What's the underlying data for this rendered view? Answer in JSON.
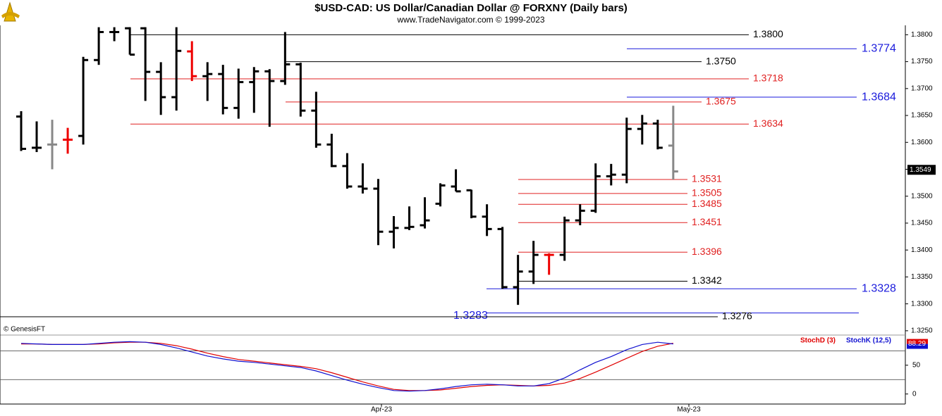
{
  "chart_data": {
    "type": "ohlc",
    "title": "$USD-CAD:  US Dollar/Canadian Dollar @ FORXNY  (Daily bars)",
    "subtitle": "www.TradeNavigator.com © 1999-2023",
    "source": "© GenesisFT",
    "ylim": [
      1.3242,
      1.3841
    ],
    "yticks": [
      {
        "value": 1.325,
        "label": "1.3250"
      },
      {
        "value": 1.33,
        "label": "1.3300"
      },
      {
        "value": 1.335,
        "label": "1.3350"
      },
      {
        "value": 1.34,
        "label": "1.3400"
      },
      {
        "value": 1.345,
        "label": "1.3450"
      },
      {
        "value": 1.35,
        "label": "1.3500"
      },
      {
        "value": 1.355,
        "label": "1.3550"
      },
      {
        "value": 1.36,
        "label": "1.3600"
      },
      {
        "value": 1.365,
        "label": "1.3650"
      },
      {
        "value": 1.37,
        "label": "1.3700"
      },
      {
        "value": 1.375,
        "label": "1.3750"
      },
      {
        "value": 1.38,
        "label": "1.3800"
      }
    ],
    "last_price": {
      "value": 1.3549,
      "label": "1.3549"
    },
    "bars": {
      "open": [
        1.3648,
        1.359,
        1.3596,
        1.3605,
        1.3612,
        1.3753,
        1.3805,
        1.3812,
        1.3812,
        1.3731,
        1.3684,
        1.3769,
        1.3723,
        1.3727,
        1.3664,
        1.3712,
        1.3732,
        1.3714,
        1.3745,
        1.3659,
        1.3596,
        1.3556,
        1.3518,
        1.3514,
        1.3434,
        1.3441,
        1.3446,
        1.3486,
        1.3518,
        1.3511,
        1.3462,
        1.3439,
        1.3331,
        1.336,
        1.3391,
        1.3391,
        1.3455,
        1.3473,
        1.3537,
        1.354,
        1.3625,
        1.3635,
        1.3594
      ],
      "high": [
        1.3658,
        1.3639,
        1.3642,
        1.3627,
        1.3759,
        1.3814,
        1.3814,
        1.3814,
        1.3814,
        1.3749,
        1.3814,
        1.3788,
        1.3749,
        1.3744,
        1.3737,
        1.374,
        1.3736,
        1.3805,
        1.3748,
        1.3694,
        1.3616,
        1.358,
        1.3561,
        1.3532,
        1.3463,
        1.3481,
        1.3498,
        1.3524,
        1.355,
        1.3512,
        1.3485,
        1.3443,
        1.3391,
        1.3417,
        1.3394,
        1.3462,
        1.3485,
        1.3561,
        1.356,
        1.3646,
        1.3651,
        1.3642,
        1.3668
      ],
      "low": [
        1.3584,
        1.3582,
        1.355,
        1.3579,
        1.3596,
        1.3744,
        1.3788,
        1.3763,
        1.3677,
        1.3651,
        1.3659,
        1.3714,
        1.3677,
        1.3652,
        1.3644,
        1.3655,
        1.3629,
        1.3707,
        1.3648,
        1.359,
        1.3554,
        1.3514,
        1.3505,
        1.3409,
        1.3403,
        1.3437,
        1.344,
        1.3481,
        1.3509,
        1.3459,
        1.3426,
        1.3328,
        1.3298,
        1.3337,
        1.3354,
        1.338,
        1.3446,
        1.3469,
        1.352,
        1.3524,
        1.3596,
        1.3587,
        1.3531
      ],
      "close": [
        1.3588,
        1.359,
        1.3596,
        1.3605,
        1.3753,
        1.3805,
        1.3805,
        1.3763,
        1.3731,
        1.3684,
        1.377,
        1.3723,
        1.3727,
        1.3664,
        1.3712,
        1.3732,
        1.3714,
        1.3745,
        1.3659,
        1.3596,
        1.3556,
        1.3518,
        1.3514,
        1.3434,
        1.3441,
        1.3443,
        1.3455,
        1.352,
        1.3509,
        1.3462,
        1.3439,
        1.3331,
        1.336,
        1.3391,
        1.3391,
        1.3455,
        1.3473,
        1.3537,
        1.354,
        1.3625,
        1.3635,
        1.359,
        1.3546
      ],
      "colors": [
        "#000",
        "#000",
        "#888",
        "#e00",
        "#000",
        "#000",
        "#000",
        "#000",
        "#000",
        "#000",
        "#000",
        "#e00",
        "#000",
        "#000",
        "#000",
        "#000",
        "#000",
        "#000",
        "#000",
        "#000",
        "#000",
        "#000",
        "#000",
        "#000",
        "#000",
        "#000",
        "#000",
        "#000",
        "#000",
        "#000",
        "#000",
        "#000",
        "#000",
        "#000",
        "#e00",
        "#000",
        "#000",
        "#000",
        "#000",
        "#000",
        "#000",
        "#000",
        "#888"
      ]
    },
    "levels": [
      {
        "value": 1.38,
        "label": "1.3800",
        "color": "#000"
      },
      {
        "value": 1.3774,
        "label": "1.3774",
        "color": "#1a1adc"
      },
      {
        "value": 1.375,
        "label": "1.3750",
        "color": "#000"
      },
      {
        "value": 1.3718,
        "label": "1.3718",
        "color": "#e02020"
      },
      {
        "value": 1.3684,
        "label": "1.3684",
        "color": "#1a1adc"
      },
      {
        "value": 1.3675,
        "label": "1.3675",
        "color": "#e02020"
      },
      {
        "value": 1.3634,
        "label": "1.3634",
        "color": "#e02020"
      },
      {
        "value": 1.3531,
        "label": "1.3531",
        "color": "#e02020"
      },
      {
        "value": 1.3505,
        "label": "1.3505",
        "color": "#e02020"
      },
      {
        "value": 1.3485,
        "label": "1.3485",
        "color": "#e02020"
      },
      {
        "value": 1.3451,
        "label": "1.3451",
        "color": "#e02020"
      },
      {
        "value": 1.3396,
        "label": "1.3396",
        "color": "#e02020"
      },
      {
        "value": 1.3342,
        "label": "1.3342",
        "color": "#000"
      },
      {
        "value": 1.3328,
        "label": "1.3328",
        "color": "#1a1adc"
      },
      {
        "value": 1.3283,
        "label": "1.3283",
        "color": "#1a1adc"
      },
      {
        "value": 1.3276,
        "label": "1.3276",
        "color": "#000"
      }
    ],
    "xtick_labels": [
      "Apr-23",
      "May-23"
    ],
    "indicator": {
      "ylim": [
        -15,
        100
      ],
      "yticks": [
        0,
        50
      ],
      "hlines": [
        25,
        75
      ],
      "series": [
        {
          "name": "StochD (3)",
          "color": "#e00000",
          "values": [
            87,
            87,
            86,
            86,
            86,
            87,
            89,
            90,
            90,
            88,
            84,
            78,
            71,
            65,
            60,
            57,
            54,
            51,
            48,
            44,
            37,
            29,
            21,
            14,
            8,
            6,
            6,
            7,
            10,
            13,
            15,
            16,
            15,
            14,
            15,
            19,
            27,
            38,
            50,
            62,
            74,
            83,
            88.29
          ],
          "last_label": "88.29"
        },
        {
          "name": "StochK (12,5)",
          "color": "#1010d0",
          "values": [
            88,
            87,
            86,
            86,
            86,
            88,
            90,
            91,
            90,
            86,
            80,
            73,
            66,
            61,
            57,
            55,
            52,
            49,
            46,
            40,
            32,
            24,
            17,
            11,
            6,
            5,
            6,
            9,
            13,
            16,
            17,
            16,
            14,
            14,
            18,
            28,
            42,
            55,
            65,
            77,
            86,
            90,
            87
          ]
        }
      ]
    }
  }
}
